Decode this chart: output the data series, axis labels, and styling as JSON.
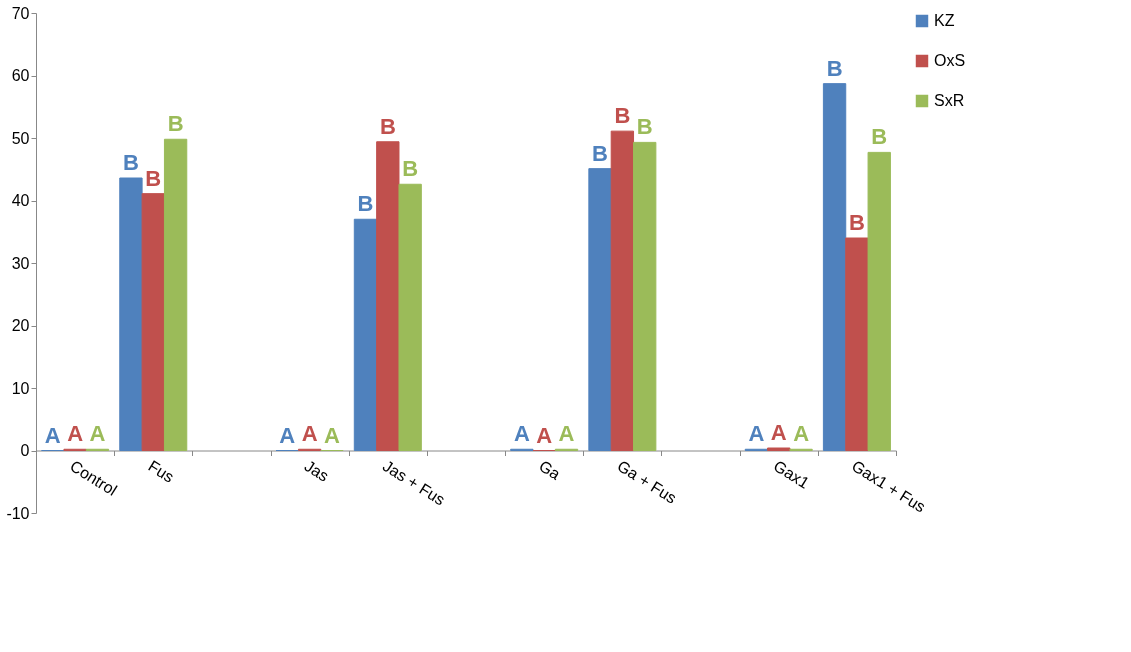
{
  "chart_data": {
    "type": "bar",
    "categories": [
      "Control",
      "Fus",
      null,
      "Jas",
      "Jas + Fus",
      null,
      "Ga",
      "Ga + Fus",
      null,
      "Gax1",
      "Gax1 + Fus"
    ],
    "series": [
      {
        "name": "KZ",
        "color": "#4f81bd",
        "values": [
          0,
          43.6,
          null,
          0,
          37.0,
          null,
          0.2,
          45.1,
          null,
          0.2,
          58.7
        ],
        "value_labels": [
          "A",
          "B",
          null,
          "A",
          "B",
          null,
          "A",
          "B",
          null,
          "A",
          "B"
        ]
      },
      {
        "name": "OxS",
        "color": "#c0504d",
        "values": [
          0.2,
          41.1,
          null,
          0.2,
          49.4,
          null,
          0,
          51.1,
          null,
          0.4,
          34.0
        ],
        "value_labels": [
          "A",
          "B",
          null,
          "A",
          "B",
          null,
          "A",
          "B",
          null,
          "A",
          "B"
        ]
      },
      {
        "name": "SxR",
        "color": "#9bbb59",
        "values": [
          0.2,
          49.8,
          null,
          0,
          42.6,
          null,
          0.2,
          49.3,
          null,
          0.2,
          47.7
        ],
        "value_labels": [
          "A",
          "B",
          null,
          "A",
          "B",
          null,
          "A",
          "B",
          null,
          "A",
          "B"
        ]
      }
    ],
    "ylim": [
      -10,
      70
    ],
    "yticks": [
      -10,
      0,
      10,
      20,
      30,
      40,
      50,
      60,
      70
    ],
    "grid": false,
    "legend": "right"
  }
}
